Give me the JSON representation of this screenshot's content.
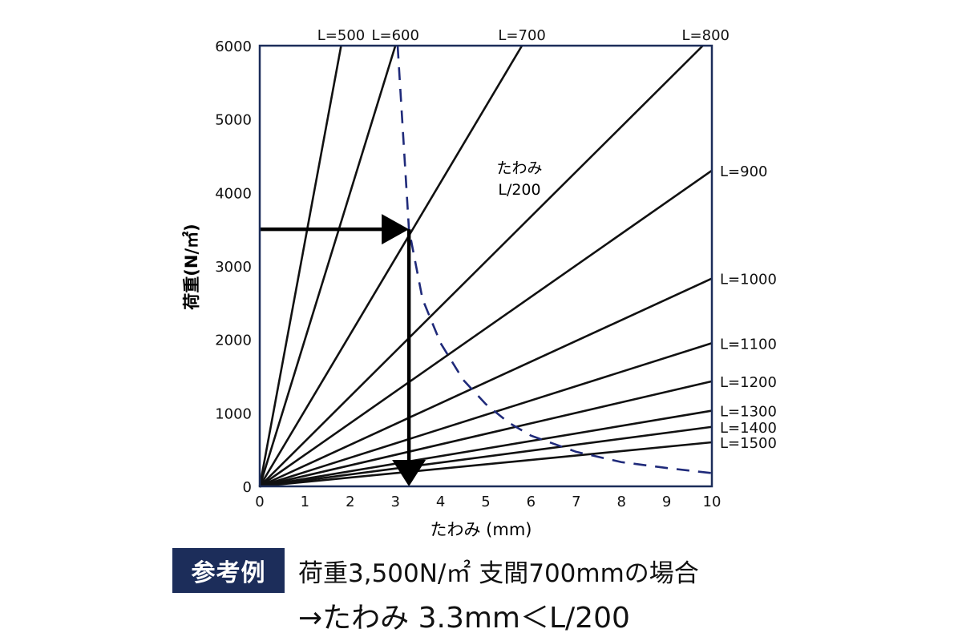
{
  "chart_data": {
    "type": "line",
    "xlabel": "たわみ (mm)",
    "ylabel": "荷重(N/㎡)",
    "xlim": [
      0,
      10
    ],
    "ylim": [
      0,
      6000
    ],
    "x_ticks": [
      0,
      1,
      2,
      3,
      4,
      5,
      6,
      7,
      8,
      9,
      10
    ],
    "y_ticks": [
      0,
      1000,
      2000,
      3000,
      4000,
      5000,
      6000
    ],
    "series": [
      {
        "name": "L=500",
        "x": [
          0,
          1.8
        ],
        "y": [
          0,
          6000
        ]
      },
      {
        "name": "L=600",
        "x": [
          0,
          3.0
        ],
        "y": [
          0,
          6000
        ]
      },
      {
        "name": "L=700",
        "x": [
          0,
          5.8
        ],
        "y": [
          0,
          6000
        ]
      },
      {
        "name": "L=800",
        "x": [
          0,
          9.8
        ],
        "y": [
          0,
          6000
        ]
      },
      {
        "name": "L=900",
        "x": [
          0,
          10
        ],
        "y": [
          0,
          4300
        ]
      },
      {
        "name": "L=1000",
        "x": [
          0,
          10
        ],
        "y": [
          0,
          2830
        ]
      },
      {
        "name": "L=1100",
        "x": [
          0,
          10
        ],
        "y": [
          0,
          1950
        ]
      },
      {
        "name": "L=1200",
        "x": [
          0,
          10
        ],
        "y": [
          0,
          1430
        ]
      },
      {
        "name": "L=1300",
        "x": [
          0,
          10
        ],
        "y": [
          0,
          1030
        ]
      },
      {
        "name": "L=1400",
        "x": [
          0,
          10
        ],
        "y": [
          0,
          810
        ]
      },
      {
        "name": "L=1500",
        "x": [
          0,
          10
        ],
        "y": [
          0,
          600
        ]
      }
    ],
    "limit_curve": {
      "label_line1": "たわみ",
      "label_line2": "L/200",
      "color": "#1f2a7a",
      "x": [
        3.05,
        3.3,
        3.6,
        4.0,
        4.5,
        5.0,
        5.5,
        6.0,
        7.0,
        8.0,
        9.0,
        10.0
      ],
      "y": [
        6000,
        3500,
        2550,
        1950,
        1450,
        1120,
        870,
        690,
        470,
        330,
        250,
        180
      ]
    },
    "example_path": {
      "x": 3.3,
      "y": 3500
    },
    "frame_color": "#1c2d5a",
    "grid": false
  },
  "caption": {
    "badge": "参考例",
    "line1": "荷重3,500N/㎡ 支間700mmの場合",
    "line2": "→たわみ 3.3mm＜L/200"
  }
}
